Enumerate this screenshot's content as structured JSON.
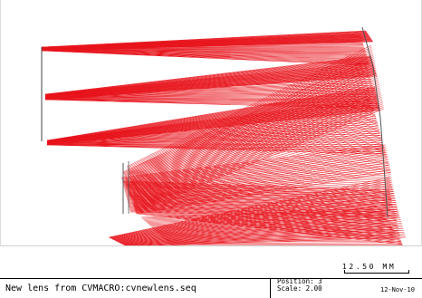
{
  "diagram": {
    "ray_color": "#e8141c",
    "lens_color": "#555555"
  },
  "scale_bar": {
    "label": "12.50   MM"
  },
  "title_block": {
    "lens_name": "New lens from CVMACRO:cvnewlens.seq",
    "position": "Position: 3",
    "scale": "Scale: 2.00",
    "date": "12-Nov-10"
  }
}
